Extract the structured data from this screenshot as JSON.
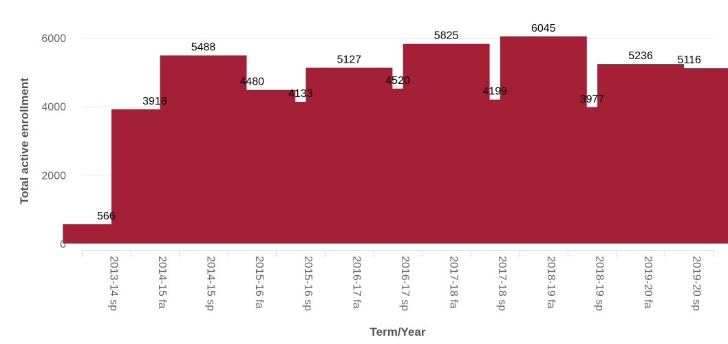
{
  "chart_data": {
    "type": "bar",
    "title": "",
    "xlabel": "Term/Year",
    "ylabel": "Total active enrollment",
    "categories": [
      "2013-14 sp",
      "2014-15 fa",
      "2014-15 sp",
      "2015-16 fa",
      "2015-16 sp",
      "2016-17 fa",
      "2016-17 sp",
      "2017-18 fa",
      "2017-18 sp",
      "2018-19 fa",
      "2018-19 sp",
      "2019-20 fa",
      "2019-20 sp"
    ],
    "values": [
      566,
      3918,
      5488,
      4480,
      4133,
      5127,
      4520,
      5825,
      4199,
      6045,
      3977,
      5236,
      5116
    ],
    "ylim": [
      0,
      6000
    ],
    "yticks": [
      0,
      2000,
      4000,
      6000
    ],
    "grid": true,
    "legend": "none",
    "bar_color": "#a32036",
    "data_labels": true
  }
}
